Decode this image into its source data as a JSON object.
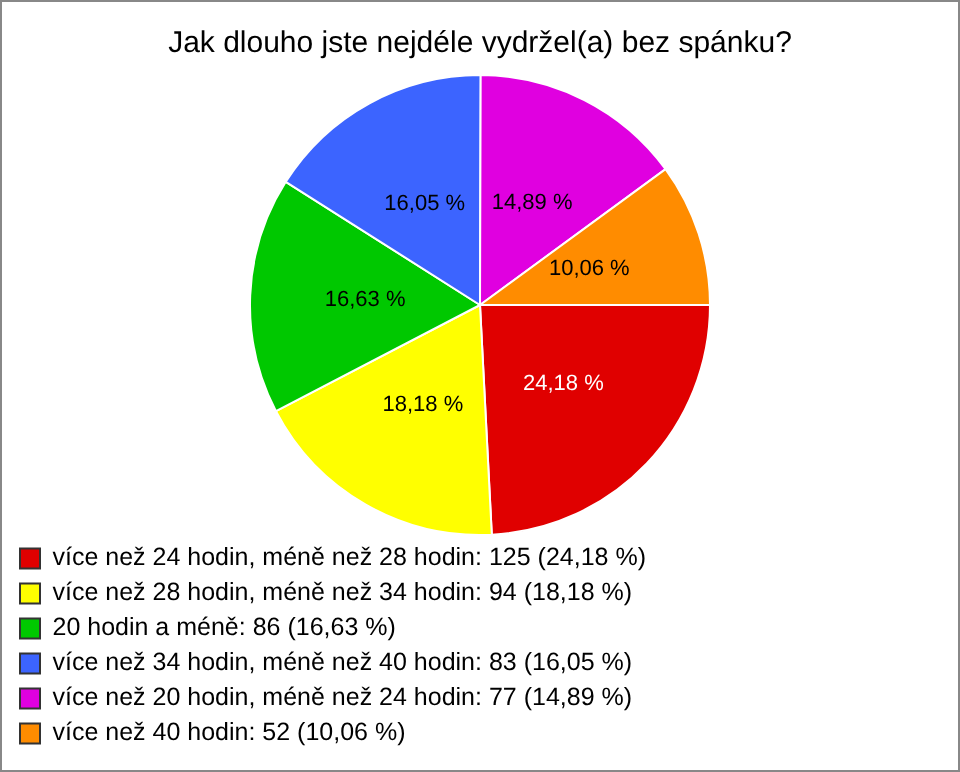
{
  "chart_data": {
    "type": "pie",
    "title": "Jak dlouho jste nejdéle vydržel(a) bez spánku?",
    "categories": [
      "více než 24 hodin, méně než 28 hodin: 125 (24,18 %)",
      "více než 28 hodin, méně než 34 hodin: 94 (18,18 %)",
      "20 hodin a méně: 86 (16,63 %)",
      "více než 34 hodin, méně než 40 hodin: 83 (16,05 %)",
      "více než 20 hodin, méně než 24 hodin: 77 (14,89 %)",
      "více než 40 hodin: 52 (10,06 %)"
    ],
    "values": [
      24.18,
      18.18,
      16.63,
      16.05,
      14.89,
      10.06
    ],
    "value_labels": [
      "24,18 %",
      "18,18 %",
      "16,63 %",
      "16,05 %",
      "14,89 %",
      "10,06 %"
    ],
    "colors": [
      "#e00000",
      "#ffff00",
      "#00c800",
      "#3c64ff",
      "#e000e0",
      "#ff8c00"
    ],
    "legend": "bottom"
  }
}
